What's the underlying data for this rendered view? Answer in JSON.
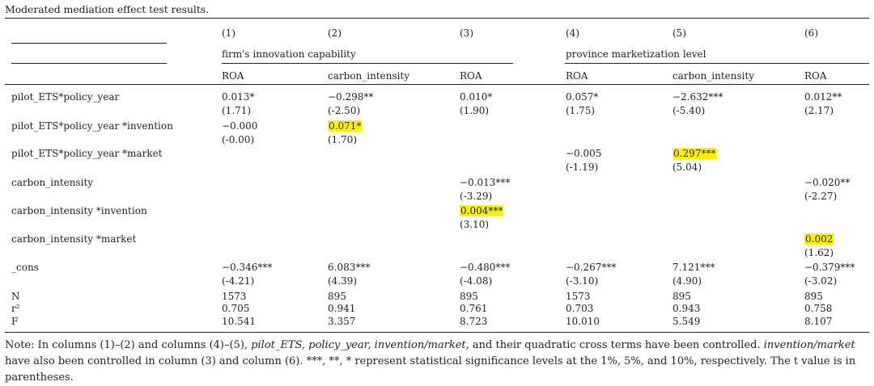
{
  "title": "Moderated mediation effect test results.",
  "col_numbers": [
    "(1)",
    "(2)",
    "(3)",
    "(4)",
    "(5)",
    "(6)"
  ],
  "groups": [
    "firm's innovation capability",
    "province marketization level"
  ],
  "dep_vars": [
    "ROA",
    "carbon_intensity",
    "ROA",
    "ROA",
    "carbon_intensity",
    "ROA"
  ],
  "rows": [
    {
      "label": "pilot_ETS*policy_year",
      "coef": [
        "0.013*",
        "−0.298**",
        "0.010*",
        "0.057*",
        "−2.632***",
        "0.012**"
      ],
      "t": [
        "(1.71)",
        "(-2.50)",
        "(1.90)",
        "(1.75)",
        "(-5.40)",
        "(2.17)"
      ]
    },
    {
      "label": "pilot_ETS*policy_year *invention",
      "coef": [
        "−0.000",
        "0.071*",
        "",
        "",
        "",
        ""
      ],
      "t": [
        "(-0.00)",
        "(1.70)",
        "",
        "",
        "",
        ""
      ]
    },
    {
      "label": "pilot_ETS*policy_year *market",
      "coef": [
        "",
        "",
        "",
        "−0.005",
        "0.297***",
        ""
      ],
      "t": [
        "",
        "",
        "",
        "(-1.19)",
        "(5.04)",
        ""
      ]
    },
    {
      "label": "carbon_intensity",
      "coef": [
        "",
        "",
        "−0.013***",
        "",
        "",
        "−0.020**"
      ],
      "t": [
        "",
        "",
        "(-3.29)",
        "",
        "",
        "(-2.27)"
      ]
    },
    {
      "label": "carbon_intensity *invention",
      "coef": [
        "",
        "",
        "0.004***",
        "",
        "",
        ""
      ],
      "t": [
        "",
        "",
        "(3.10)",
        "",
        "",
        ""
      ]
    },
    {
      "label": "carbon_intensity *market",
      "coef": [
        "",
        "",
        "",
        "",
        "",
        "0.002"
      ],
      "t": [
        "",
        "",
        "",
        "",
        "",
        "(1.62)"
      ]
    },
    {
      "label": "_cons",
      "coef": [
        "−0.346***",
        "6.083***",
        "−0.480***",
        "−0.267***",
        "7.121***",
        "−0.379***"
      ],
      "t": [
        "(-4.21)",
        "(4.39)",
        "(-4.08)",
        "(-3.10)",
        "(4.90)",
        "(-3.02)"
      ]
    }
  ],
  "stats": [
    {
      "label": "N",
      "values": [
        "1573",
        "895",
        "895",
        "1573",
        "895",
        "895"
      ]
    },
    {
      "label": "r²",
      "values": [
        "0.705",
        "0.941",
        "0.761",
        "0.703",
        "0.943",
        "0.758"
      ]
    },
    {
      "label": "F",
      "values": [
        "10.541",
        "3.357",
        "8.723",
        "10.010",
        "5.549",
        "8.107"
      ]
    }
  ],
  "highlight_color": "#fff200",
  "note": {
    "p1": "Note: In columns (1)–(2) and columns (4)–(5), ",
    "i1": "pilot_ETS, policy_year, invention/market,",
    "p2": " and their quadratic cross terms have been controlled. ",
    "i2": "invention/market",
    "p3": " have also been controlled in column (3) and column (6). ***, **, * represent statistical significance levels at the 1%, 5%, and 10%, respectively. The t value is in parentheses."
  }
}
